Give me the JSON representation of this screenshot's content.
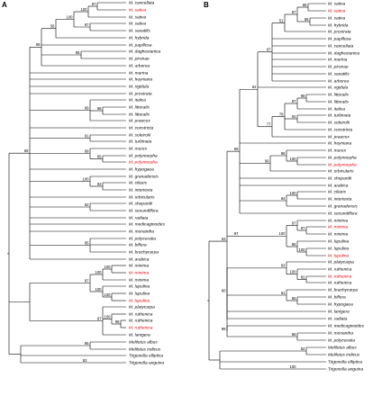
{
  "colors": {
    "highlight": "#e8000b",
    "text": "#000000",
    "branch": "#000000"
  },
  "panels": [
    {
      "letter": "A",
      "leaves": [
        {
          "label": "M. cancellata",
          "hl": false
        },
        {
          "label": "M. sativa",
          "hl": true
        },
        {
          "label": "M. sativa",
          "hl": false
        },
        {
          "label": "M. sativa",
          "hl": false
        },
        {
          "label": "M. saxatilis",
          "hl": false
        },
        {
          "label": "M. hybrida",
          "hl": false
        },
        {
          "label": "M. papillosa",
          "hl": false
        },
        {
          "label": "M. daghestanica",
          "hl": false
        },
        {
          "label": "M. pironae",
          "hl": false
        },
        {
          "label": "M. arborea",
          "hl": false
        },
        {
          "label": "M. marina",
          "hl": false
        },
        {
          "label": "M. heyniana",
          "hl": false
        },
        {
          "label": "M. rigidula",
          "hl": false
        },
        {
          "label": "M. prostrata",
          "hl": false
        },
        {
          "label": "M. italica",
          "hl": false
        },
        {
          "label": "M. littoralis",
          "hl": false
        },
        {
          "label": "M. littoralis",
          "hl": false
        },
        {
          "label": "M. praecox",
          "hl": false
        },
        {
          "label": "M. constricta",
          "hl": false
        },
        {
          "label": "M. soleirolii",
          "hl": false
        },
        {
          "label": "M. turbinata",
          "hl": false
        },
        {
          "label": "M. murex",
          "hl": false
        },
        {
          "label": "M. polymorpha",
          "hl": false
        },
        {
          "label": "M. polymorpha",
          "hl": true
        },
        {
          "label": "M. hypogaea",
          "hl": false
        },
        {
          "label": "M. granadensis",
          "hl": false
        },
        {
          "label": "M. ciliaris",
          "hl": false
        },
        {
          "label": "M. intertexta",
          "hl": false
        },
        {
          "label": "M. orbicularis",
          "hl": false
        },
        {
          "label": "M. shepardii",
          "hl": false
        },
        {
          "label": "M. secundiflora",
          "hl": false
        },
        {
          "label": "M. radiata",
          "hl": false
        },
        {
          "label": "M. medicaginoides",
          "hl": false
        },
        {
          "label": "M. monantha",
          "hl": false
        },
        {
          "label": "M. polyceratia",
          "hl": false
        },
        {
          "label": "M. biflora",
          "hl": false
        },
        {
          "label": "M. brachycarpa",
          "hl": false
        },
        {
          "label": "M. arabica",
          "hl": false
        },
        {
          "label": "M. minima",
          "hl": false
        },
        {
          "label": "M. minima",
          "hl": true
        },
        {
          "label": "M. minima",
          "hl": false
        },
        {
          "label": "M. lupulina",
          "hl": false
        },
        {
          "label": "M. lupulina",
          "hl": false
        },
        {
          "label": "M. lupulina",
          "hl": true
        },
        {
          "label": "M. platycarpa",
          "hl": false
        },
        {
          "label": "M. ruthenica",
          "hl": false
        },
        {
          "label": "M. ruthenica",
          "hl": false
        },
        {
          "label": "M. ruthenica",
          "hl": true
        },
        {
          "label": "M. lanigera",
          "hl": false
        },
        {
          "label": "Melilotus albus",
          "hl": false
        },
        {
          "label": "Melilotus indicus",
          "hl": false
        },
        {
          "label": "Trigonella elliptica",
          "hl": false
        },
        {
          "label": "Trigonella anguina",
          "hl": false
        }
      ],
      "support": [
        "97",
        "100",
        "97",
        "100",
        "56",
        "99",
        "95",
        "99",
        "98",
        "91",
        "99",
        "85",
        "100",
        "92",
        "85",
        "59",
        "100",
        "100",
        "100",
        "87",
        "100",
        "97",
        "100",
        "98",
        "89",
        "100",
        "95",
        "83"
      ]
    },
    {
      "letter": "B",
      "leaves": [
        {
          "label": "M. sativa",
          "hl": false
        },
        {
          "label": "M. sativa",
          "hl": true
        },
        {
          "label": "M. sativa",
          "hl": false
        },
        {
          "label": "M. hybrida",
          "hl": false
        },
        {
          "label": "M. prostrata",
          "hl": false
        },
        {
          "label": "M. papillosa",
          "hl": false
        },
        {
          "label": "M. cancellata",
          "hl": false
        },
        {
          "label": "M. daghestanica",
          "hl": false
        },
        {
          "label": "M. marina",
          "hl": false
        },
        {
          "label": "M. pironae",
          "hl": false
        },
        {
          "label": "M. saxatilis",
          "hl": false
        },
        {
          "label": "M. arborea",
          "hl": false
        },
        {
          "label": "M. rigidula",
          "hl": false
        },
        {
          "label": "M. littoralis",
          "hl": false
        },
        {
          "label": "M. littoralis",
          "hl": false
        },
        {
          "label": "M. italica",
          "hl": false
        },
        {
          "label": "M. turbinata",
          "hl": false
        },
        {
          "label": "M. soleirolii",
          "hl": false
        },
        {
          "label": "M. constricta",
          "hl": false
        },
        {
          "label": "M. praecox",
          "hl": false
        },
        {
          "label": "M. heyniana",
          "hl": false
        },
        {
          "label": "M. murex",
          "hl": false
        },
        {
          "label": "M. polymorpha",
          "hl": false
        },
        {
          "label": "M. polymorpha",
          "hl": true
        },
        {
          "label": "M. orbicularis",
          "hl": false
        },
        {
          "label": "M. shepardii",
          "hl": false
        },
        {
          "label": "M. arabica",
          "hl": false
        },
        {
          "label": "M. ciliaris",
          "hl": false
        },
        {
          "label": "M. intertexta",
          "hl": false
        },
        {
          "label": "M. granadensis",
          "hl": false
        },
        {
          "label": "M. secundiflora",
          "hl": false
        },
        {
          "label": "M. minima",
          "hl": false
        },
        {
          "label": "M. minima",
          "hl": true
        },
        {
          "label": "M. minima",
          "hl": false
        },
        {
          "label": "M. lupulina",
          "hl": false
        },
        {
          "label": "M. lupulina",
          "hl": false
        },
        {
          "label": "M. lupulina",
          "hl": true
        },
        {
          "label": "M. platycarpa",
          "hl": false
        },
        {
          "label": "M. ruthenica",
          "hl": false
        },
        {
          "label": "M. ruthenica",
          "hl": true
        },
        {
          "label": "M. ruthenica",
          "hl": false
        },
        {
          "label": "M. brachycarpa",
          "hl": false
        },
        {
          "label": "M. biflora",
          "hl": false
        },
        {
          "label": "M. hypogaea",
          "hl": false
        },
        {
          "label": "M. lanigera",
          "hl": false
        },
        {
          "label": "M. radiata",
          "hl": false
        },
        {
          "label": "M. medicaginoides",
          "hl": false
        },
        {
          "label": "M. monantha",
          "hl": false
        },
        {
          "label": "M. polyceratia",
          "hl": false
        },
        {
          "label": "Melilotus albus",
          "hl": false
        },
        {
          "label": "Melilotus indicus",
          "hl": false
        },
        {
          "label": "Trigonella elliptica",
          "hl": false
        },
        {
          "label": "Trigonella anguina",
          "hl": false
        }
      ],
      "support": [
        "86",
        "87",
        "65",
        "51",
        "64",
        "67",
        "62",
        "77",
        "97",
        "98",
        "92",
        "78",
        "69",
        "98",
        "100",
        "99",
        "100",
        "94",
        "97",
        "97",
        "100",
        "86",
        "100",
        "93",
        "100",
        "82",
        "65",
        "61",
        "60",
        "63",
        "86",
        "99",
        "82",
        "100"
      ]
    }
  ]
}
